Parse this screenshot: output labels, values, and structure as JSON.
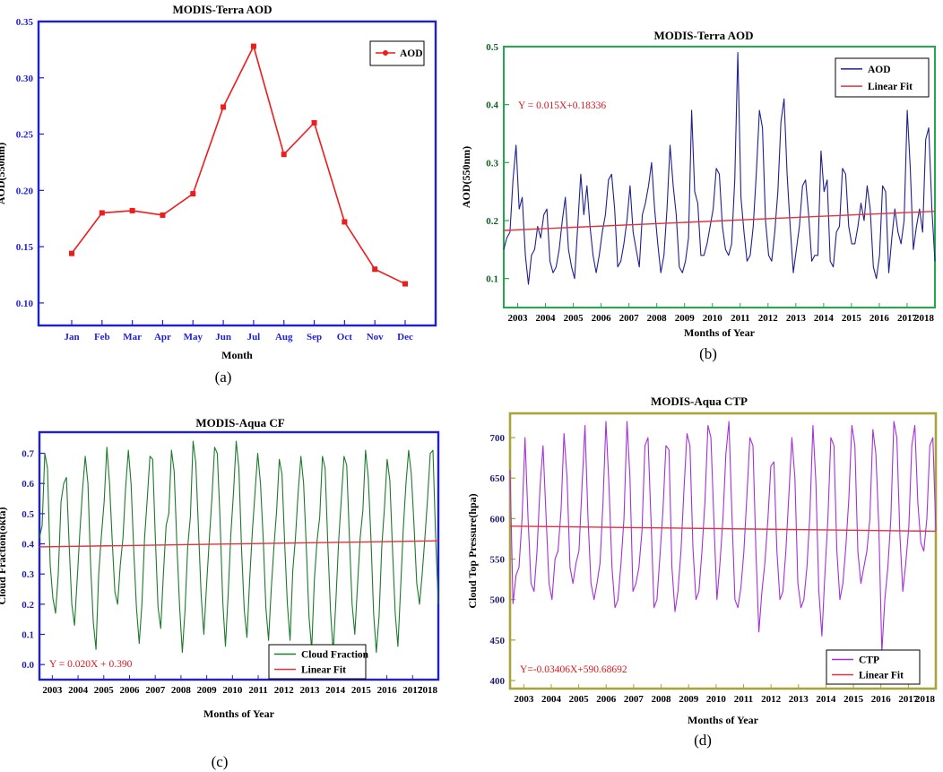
{
  "chart_data": [
    {
      "panel": "a",
      "type": "line",
      "title": "MODIS-Terra AOD",
      "xlabel": "Month",
      "ylabel": "AOD(550nm)",
      "caption": "(a)",
      "categories": [
        "Jan",
        "Feb",
        "Mar",
        "Apr",
        "May",
        "Jun",
        "Jul",
        "Aug",
        "Sep",
        "Oct",
        "Nov",
        "Dec"
      ],
      "series": [
        {
          "name": "AOD",
          "color": "#ee1c1c",
          "values": [
            0.144,
            0.18,
            0.182,
            0.178,
            0.197,
            0.274,
            0.328,
            0.232,
            0.26,
            0.172,
            0.13,
            0.117
          ]
        }
      ],
      "ylim": [
        0.08,
        0.35
      ],
      "yticks": [
        "0.10",
        "0.15",
        "0.20",
        "0.25",
        "0.30",
        "0.35"
      ],
      "frame_color": "#1f1fd6",
      "tick_color": "#1f1fd6"
    },
    {
      "panel": "b",
      "type": "line",
      "title": "MODIS-Terra AOD",
      "xlabel": "Months of Year",
      "ylabel": "AOD(550nm)",
      "caption": "(b)",
      "x_start": 2002.5,
      "x_end": 2018.0,
      "xticks": [
        "2003",
        "2004",
        "2005",
        "2006",
        "2007",
        "2008",
        "2009",
        "2010",
        "2011",
        "2012",
        "2013",
        "2014",
        "2015",
        "2016",
        "2017",
        "2018"
      ],
      "yticks": [
        "0.1",
        "0.2",
        "0.3",
        "0.4",
        "0.5"
      ],
      "ylim": [
        0.05,
        0.5
      ],
      "equation": "Y = 0.015X+0.18336",
      "legend": [
        "AOD",
        "Linear Fit"
      ],
      "trend": [
        0.183,
        0.216
      ],
      "series": [
        {
          "name": "AOD",
          "color": "#20208e",
          "values": [
            0.15,
            0.17,
            0.18,
            0.27,
            0.33,
            0.22,
            0.24,
            0.14,
            0.09,
            0.14,
            0.15,
            0.19,
            0.17,
            0.21,
            0.22,
            0.13,
            0.11,
            0.12,
            0.15,
            0.2,
            0.24,
            0.15,
            0.12,
            0.1,
            0.19,
            0.28,
            0.21,
            0.26,
            0.19,
            0.14,
            0.11,
            0.14,
            0.18,
            0.21,
            0.27,
            0.28,
            0.22,
            0.12,
            0.13,
            0.16,
            0.2,
            0.26,
            0.18,
            0.15,
            0.12,
            0.21,
            0.23,
            0.26,
            0.3,
            0.22,
            0.16,
            0.11,
            0.14,
            0.22,
            0.33,
            0.26,
            0.21,
            0.12,
            0.11,
            0.13,
            0.17,
            0.39,
            0.25,
            0.23,
            0.14,
            0.14,
            0.16,
            0.19,
            0.22,
            0.29,
            0.28,
            0.19,
            0.15,
            0.14,
            0.16,
            0.27,
            0.49,
            0.24,
            0.18,
            0.13,
            0.14,
            0.19,
            0.28,
            0.39,
            0.36,
            0.2,
            0.14,
            0.13,
            0.18,
            0.25,
            0.37,
            0.41,
            0.28,
            0.19,
            0.11,
            0.15,
            0.19,
            0.26,
            0.27,
            0.21,
            0.13,
            0.14,
            0.14,
            0.32,
            0.25,
            0.27,
            0.13,
            0.12,
            0.18,
            0.19,
            0.29,
            0.28,
            0.19,
            0.16,
            0.16,
            0.19,
            0.23,
            0.2,
            0.26,
            0.22,
            0.12,
            0.1,
            0.14,
            0.26,
            0.25,
            0.11,
            0.17,
            0.22,
            0.18,
            0.16,
            0.2,
            0.39,
            0.29,
            0.15,
            0.19,
            0.22,
            0.18,
            0.34,
            0.36,
            0.22,
            0.13
          ]
        }
      ]
    },
    {
      "panel": "c",
      "type": "line",
      "title": "MODIS-Aqua CF",
      "xlabel": "Months of Year",
      "ylabel": "Cloud Fraction(okta)",
      "caption": "(c)",
      "x_start": 2002.5,
      "x_end": 2018.0,
      "xticks": [
        "2003",
        "2004",
        "2005",
        "2006",
        "2007",
        "2008",
        "2009",
        "2010",
        "2011",
        "2012",
        "2013",
        "2014",
        "2015",
        "2016",
        "2017",
        "2018"
      ],
      "yticks": [
        "0.0",
        "0.1",
        "0.2",
        "0.3",
        "0.4",
        "0.5",
        "0.6",
        "0.7"
      ],
      "ylim": [
        -0.05,
        0.77
      ],
      "equation": "Y = 0.020X + 0.390",
      "legend": [
        "Cloud Fraction",
        "Linear Fit"
      ],
      "trend": [
        0.39,
        0.41
      ],
      "series": [
        {
          "name": "Cloud Fraction",
          "color": "#1c7a2c",
          "values": [
            0.42,
            0.46,
            0.7,
            0.65,
            0.33,
            0.22,
            0.17,
            0.3,
            0.54,
            0.6,
            0.62,
            0.4,
            0.2,
            0.13,
            0.28,
            0.44,
            0.58,
            0.69,
            0.6,
            0.33,
            0.14,
            0.05,
            0.3,
            0.43,
            0.54,
            0.72,
            0.6,
            0.41,
            0.24,
            0.2,
            0.33,
            0.42,
            0.59,
            0.71,
            0.6,
            0.38,
            0.19,
            0.07,
            0.2,
            0.42,
            0.55,
            0.69,
            0.68,
            0.42,
            0.19,
            0.12,
            0.3,
            0.46,
            0.5,
            0.71,
            0.64,
            0.4,
            0.19,
            0.04,
            0.18,
            0.39,
            0.49,
            0.74,
            0.67,
            0.45,
            0.23,
            0.1,
            0.26,
            0.41,
            0.55,
            0.72,
            0.7,
            0.48,
            0.21,
            0.06,
            0.23,
            0.43,
            0.57,
            0.74,
            0.65,
            0.38,
            0.18,
            0.09,
            0.28,
            0.44,
            0.57,
            0.7,
            0.6,
            0.42,
            0.19,
            0.08,
            0.25,
            0.39,
            0.51,
            0.68,
            0.63,
            0.4,
            0.2,
            0.08,
            0.31,
            0.42,
            0.57,
            0.69,
            0.6,
            0.39,
            0.16,
            0.05,
            0.28,
            0.41,
            0.49,
            0.69,
            0.65,
            0.4,
            0.18,
            0.04,
            0.21,
            0.41,
            0.55,
            0.69,
            0.66,
            0.42,
            0.2,
            0.1,
            0.26,
            0.42,
            0.51,
            0.71,
            0.62,
            0.42,
            0.17,
            0.04,
            0.16,
            0.39,
            0.52,
            0.68,
            0.61,
            0.38,
            0.17,
            0.06,
            0.25,
            0.45,
            0.6,
            0.71,
            0.63,
            0.46,
            0.27,
            0.2,
            0.3,
            0.42,
            0.55,
            0.7,
            0.71,
            0.42,
            0.2
          ]
        }
      ]
    },
    {
      "panel": "d",
      "type": "line",
      "title": "MODIS-Aqua CTP",
      "xlabel": "Months of Year",
      "ylabel": "Cloud Top Pressure(hpa)",
      "caption": "(d)",
      "x_start": 2002.5,
      "x_end": 2018.0,
      "xticks": [
        "2003",
        "2004",
        "2005",
        "2006",
        "2007",
        "2008",
        "2009",
        "2010",
        "2011",
        "2012",
        "2013",
        "2014",
        "2015",
        "2016",
        "2017",
        "2018"
      ],
      "yticks": [
        "400",
        "450",
        "500",
        "550",
        "600",
        "650",
        "700"
      ],
      "ylim": [
        390,
        730
      ],
      "equation": "Y=-0.03406X+590.68692",
      "legend": [
        "CTP",
        "Linear Fit"
      ],
      "trend": [
        590.7,
        584.4
      ],
      "series": [
        {
          "name": "CTP",
          "color": "#a331d8",
          "values": [
            660,
            495,
            530,
            540,
            600,
            700,
            600,
            520,
            510,
            560,
            640,
            690,
            605,
            520,
            500,
            550,
            560,
            610,
            705,
            650,
            540,
            520,
            545,
            560,
            640,
            715,
            600,
            520,
            500,
            520,
            545,
            620,
            720,
            640,
            540,
            490,
            500,
            545,
            600,
            720,
            650,
            510,
            520,
            540,
            585,
            690,
            700,
            600,
            490,
            500,
            555,
            610,
            690,
            685,
            540,
            485,
            510,
            560,
            635,
            705,
            690,
            565,
            500,
            510,
            560,
            620,
            715,
            700,
            595,
            500,
            545,
            600,
            680,
            720,
            605,
            500,
            490,
            515,
            560,
            630,
            700,
            690,
            560,
            460,
            510,
            545,
            600,
            665,
            670,
            560,
            500,
            510,
            560,
            630,
            700,
            650,
            520,
            490,
            500,
            540,
            605,
            715,
            645,
            510,
            455,
            530,
            600,
            700,
            690,
            560,
            500,
            520,
            565,
            625,
            715,
            690,
            560,
            520,
            540,
            560,
            600,
            710,
            680,
            590,
            435,
            500,
            540,
            600,
            720,
            700,
            580,
            510,
            545,
            590,
            690,
            715,
            620,
            570,
            560,
            600,
            690,
            700,
            585
          ]
        }
      ]
    }
  ]
}
